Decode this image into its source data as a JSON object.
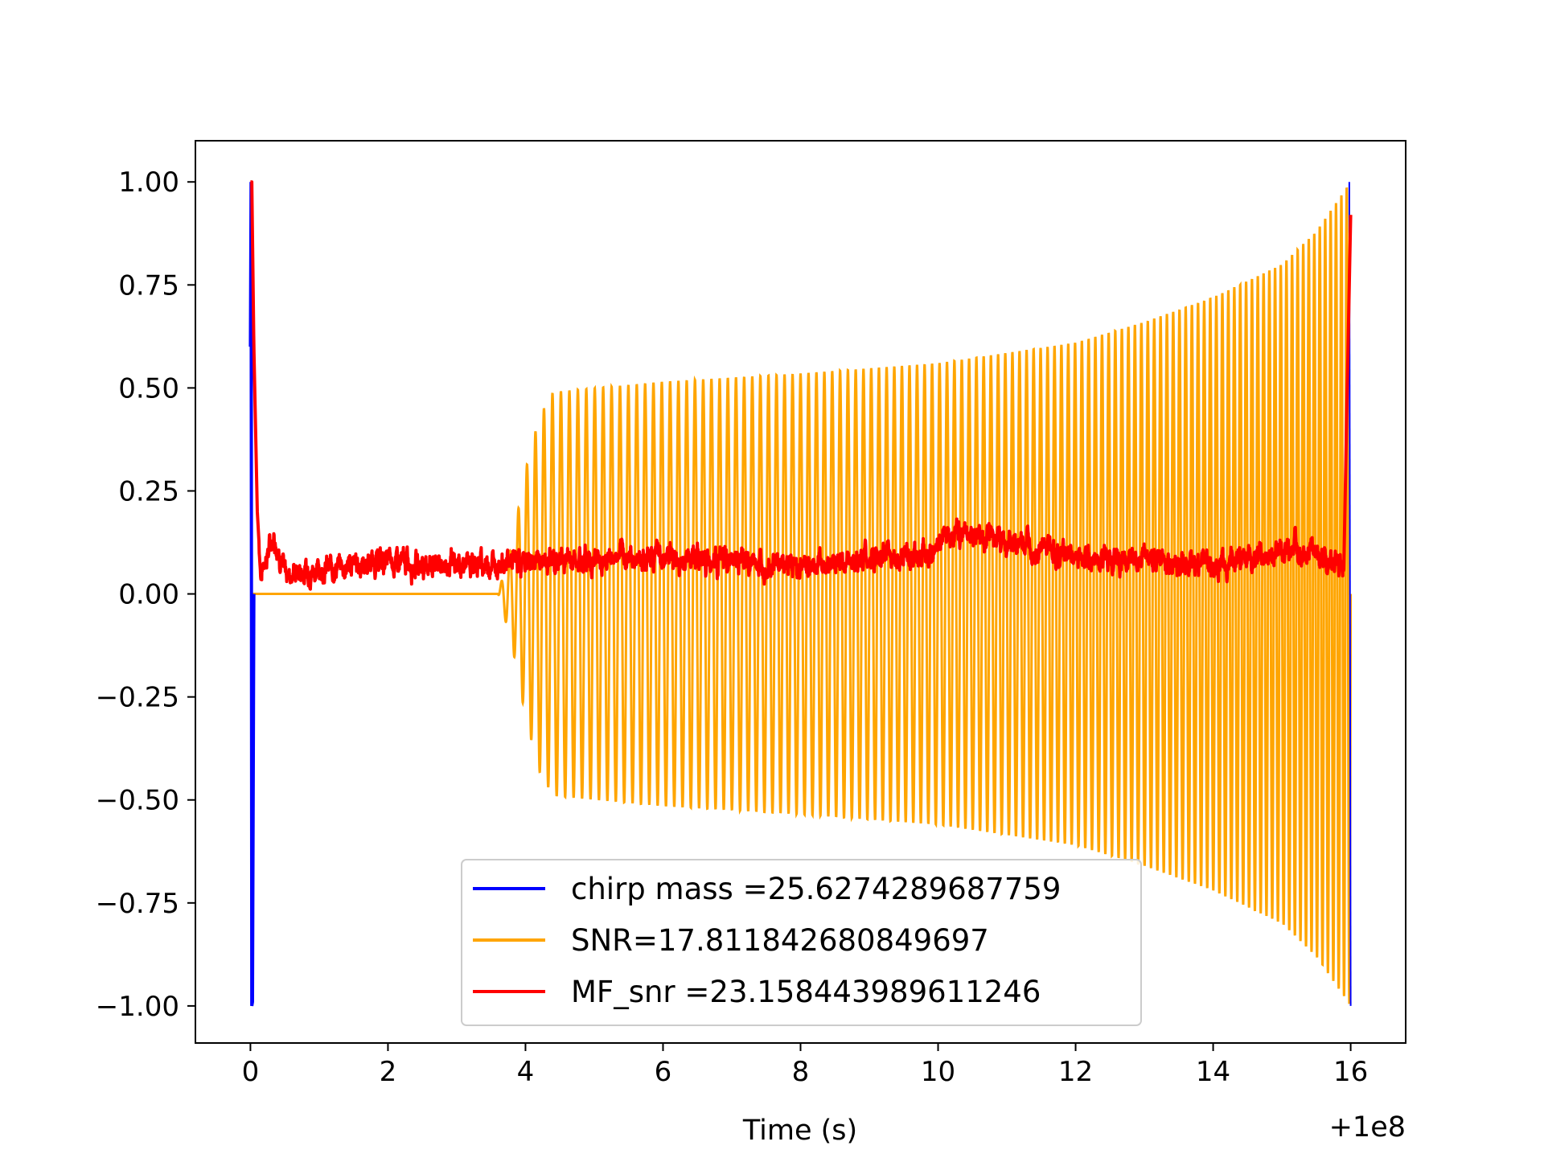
{
  "chart_data": {
    "type": "line",
    "title": "",
    "xlabel": "Time (s)",
    "ylabel": "",
    "x_offset_label": "+1e8",
    "xlim": [
      -0.8,
      16.8
    ],
    "ylim": [
      -1.09,
      1.1
    ],
    "xticks": [
      0,
      2,
      4,
      6,
      8,
      10,
      12,
      14,
      16
    ],
    "xtick_labels": [
      "0",
      "2",
      "4",
      "6",
      "8",
      "10",
      "12",
      "14",
      "16"
    ],
    "yticks": [
      1.0,
      0.75,
      0.5,
      0.25,
      0.0,
      -0.25,
      -0.5,
      -0.75,
      -1.0
    ],
    "ytick_labels": [
      "1.00",
      "0.75",
      "0.50",
      "0.25",
      "0.00",
      "−0.25",
      "−0.50",
      "−0.75",
      "−1.00"
    ],
    "grid": false,
    "legend_position": "lower-center",
    "series": [
      {
        "name": "chirp mass =25.6274289687759",
        "color": "#0000ff",
        "description_points": {
          "x": [
            0.0,
            0.01,
            0.02,
            0.03,
            0.05,
            15.98,
            16.0
          ],
          "y": [
            0.6,
            1.0,
            -1.0,
            -0.99,
            0.0,
            1.0,
            -1.0
          ]
        }
      },
      {
        "name": "SNR=17.811842680849697",
        "color": "#ffa500",
        "envelope": {
          "x": [
            0.0,
            3.6,
            3.8,
            4.0,
            4.2,
            4.4,
            6.0,
            8.0,
            10.0,
            12.0,
            13.0,
            14.0,
            15.0,
            15.5,
            16.0
          ],
          "amplitude": [
            0.0,
            0.0,
            0.12,
            0.3,
            0.43,
            0.49,
            0.515,
            0.535,
            0.56,
            0.61,
            0.66,
            0.72,
            0.8,
            0.88,
            1.0
          ]
        }
      },
      {
        "name": "MF_snr =23.158443989611246",
        "color": "#ff0000",
        "values": {
          "x": [
            0.0,
            0.02,
            0.05,
            0.1,
            0.15,
            0.25,
            0.35,
            0.5,
            1.0,
            2.0,
            3.0,
            4.0,
            6.0,
            8.0,
            10.0,
            10.1,
            12.0,
            14.0,
            15.2,
            15.9,
            15.95,
            16.0
          ],
          "y": [
            1.0,
            1.0,
            0.6,
            0.2,
            0.05,
            0.1,
            0.14,
            0.05,
            0.06,
            0.08,
            0.07,
            0.08,
            0.09,
            0.07,
            0.1,
            0.16,
            0.09,
            0.07,
            0.11,
            0.06,
            0.5,
            0.92
          ]
        }
      }
    ]
  }
}
